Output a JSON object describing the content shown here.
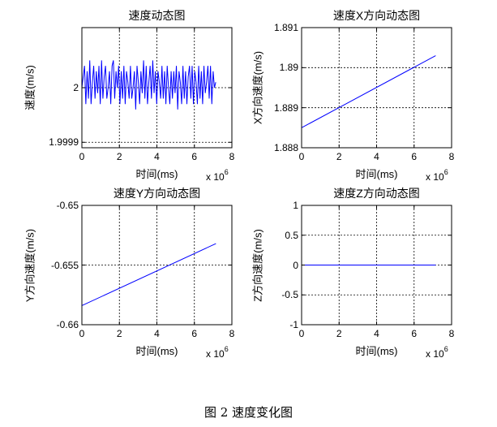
{
  "caption": "图 2  速度变化图",
  "chart_data": [
    {
      "type": "line",
      "title": "速度动态图",
      "xlabel": "时间(ms)",
      "ylabel": "速度(m/s)",
      "x_multiplier": "x 10",
      "x_multiplier_exp": "6",
      "xlim": [
        0,
        8
      ],
      "ylim": [
        1.99989,
        2.00011
      ],
      "xticks": [
        0,
        2,
        4,
        6,
        8
      ],
      "yticks": [
        1.9999,
        2
      ],
      "yticklabels": [
        "1.9999",
        "2"
      ],
      "grid": true,
      "color": "#0000ff",
      "series": [
        {
          "x": [
            0.0,
            0.14,
            0.21,
            0.28,
            0.35,
            0.42,
            0.49,
            0.56,
            0.63,
            0.7,
            0.77,
            0.84,
            0.91,
            0.98,
            1.05,
            1.12,
            1.19,
            1.26,
            1.33,
            1.4,
            1.47,
            1.54,
            1.61,
            1.68,
            1.75,
            1.82,
            1.89,
            1.96,
            2.03,
            2.1,
            2.17,
            2.24,
            2.31,
            2.38,
            2.45,
            2.52,
            2.59,
            2.66,
            2.73,
            2.8,
            2.87,
            2.94,
            3.01,
            3.08,
            3.15,
            3.22,
            3.29,
            3.36,
            3.43,
            3.5,
            3.57,
            3.64,
            3.71,
            3.78,
            3.85,
            3.92,
            3.99,
            4.06,
            4.13,
            4.2,
            4.27,
            4.34,
            4.41,
            4.48,
            4.55,
            4.62,
            4.69,
            4.76,
            4.83,
            4.9,
            4.97,
            5.04,
            5.11,
            5.18,
            5.25,
            5.32,
            5.39,
            5.46,
            5.53,
            5.6,
            5.67,
            5.74,
            5.81,
            5.88,
            5.95,
            6.02,
            6.09,
            6.16,
            6.23,
            6.3,
            6.37,
            6.44,
            6.51,
            6.58,
            6.65,
            6.72,
            6.79,
            6.86,
            6.93,
            7.0,
            7.07,
            7.14
          ],
          "y": [
            2.0,
            2.00004,
            1.99997,
            2.00003,
            1.99998,
            2.00005,
            1.99997,
            2.00001,
            2.00004,
            1.99998,
            2.00003,
            1.99999,
            2.00004,
            1.99997,
            2.00005,
            1.99998,
            2.00002,
            2.00004,
            1.99998,
            2.0,
            2.00003,
            1.99997,
            2.00004,
            2.00005,
            1.99998,
            2.00003,
            2.0,
            2.00004,
            1.99997,
            2.00003,
            1.99998,
            2.00004,
            1.99997,
            2.00003,
            2.00001,
            1.99998,
            2.00004,
            1.99998,
            2.0,
            2.00003,
            1.99996,
            2.00004,
            2.00001,
            1.99997,
            2.00003,
            1.99999,
            2.00005,
            1.99998,
            2.00004,
            1.99997,
            2.00001,
            2.00004,
            1.99998,
            2.00005,
            1.99999,
            2.00003,
            1.99997,
            2.00003,
            2.00001,
            1.99998,
            2.00004,
            1.99998,
            2.00003,
            1.99997,
            2.00004,
            2.0,
            1.99997,
            2.00003,
            1.99998,
            2.00003,
            1.99999,
            2.00004,
            1.99996,
            2.00003,
            2.00001,
            1.99997,
            2.00004,
            1.99998,
            2.00003,
            1.99997,
            2.00002,
            2.00004,
            1.99998,
            2.00004,
            1.99997,
            2.00003,
            2.00001,
            1.99997,
            2.00004,
            1.99998,
            2.00003,
            1.99997,
            2.00004,
            1.99999,
            2.00001,
            2.00004,
            1.99998,
            2.00004,
            1.99997,
            2.00003,
            2.0,
            2.00001
          ]
        }
      ]
    },
    {
      "type": "line",
      "title": "速度X方向动态图",
      "xlabel": "时间(ms)",
      "ylabel": "X方向速度(m/s)",
      "x_multiplier": "x 10",
      "x_multiplier_exp": "6",
      "xlim": [
        0,
        8
      ],
      "ylim": [
        1.888,
        1.891
      ],
      "xticks": [
        0,
        2,
        4,
        6,
        8
      ],
      "yticks": [
        1.888,
        1.889,
        1.89,
        1.891
      ],
      "yticklabels": [
        "1.888",
        "1.889",
        "1.89",
        "1.891"
      ],
      "grid": true,
      "color": "#0000ff",
      "series": [
        {
          "x": [
            0.0,
            7.15
          ],
          "y": [
            1.8885,
            1.8903
          ]
        }
      ]
    },
    {
      "type": "line",
      "title": "速度Y方向动态图",
      "xlabel": "时间(ms)",
      "ylabel": "Y方向速度(m/s)",
      "x_multiplier": "x 10",
      "x_multiplier_exp": "6",
      "xlim": [
        0,
        8
      ],
      "ylim": [
        -0.66,
        -0.65
      ],
      "xticks": [
        0,
        2,
        4,
        6,
        8
      ],
      "yticks": [
        -0.66,
        -0.655,
        -0.65
      ],
      "yticklabels": [
        "-0.66",
        "-0.655",
        "-0.65"
      ],
      "grid": true,
      "color": "#0000ff",
      "series": [
        {
          "x": [
            0.0,
            7.15
          ],
          "y": [
            -0.6584,
            -0.6532
          ]
        }
      ]
    },
    {
      "type": "line",
      "title": "速度Z方向动态图",
      "xlabel": "时间(ms)",
      "ylabel": "Z方向速度(m/s)",
      "x_multiplier": "x 10",
      "x_multiplier_exp": "6",
      "xlim": [
        0,
        8
      ],
      "ylim": [
        -1,
        1
      ],
      "xticks": [
        0,
        2,
        4,
        6,
        8
      ],
      "yticks": [
        -1,
        -0.5,
        0,
        0.5,
        1
      ],
      "yticklabels": [
        "-1",
        "-0.5",
        "0",
        "0.5",
        "1"
      ],
      "grid": true,
      "color": "#0000ff",
      "series": [
        {
          "x": [
            0.0,
            7.15
          ],
          "y": [
            0,
            0
          ]
        }
      ]
    }
  ]
}
